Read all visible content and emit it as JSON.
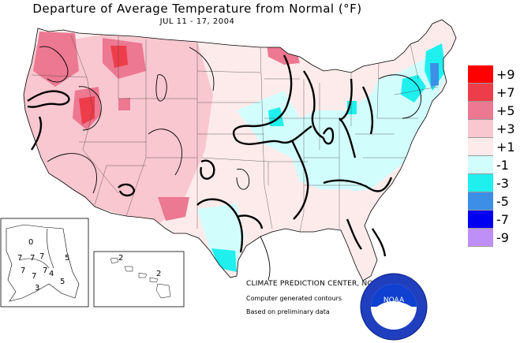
{
  "title": "Departure of Average Temperature from Normal (°F)",
  "subtitle": "JUL 11 - 17, 2004",
  "legend": [
    {
      "label": "+9",
      "color": "#ff0000"
    },
    {
      "label": "+7",
      "color": "#ee3d4a"
    },
    {
      "label": "+5",
      "color": "#ec7891"
    },
    {
      "label": "+3",
      "color": "#f9c7cf"
    },
    {
      "label": "+1",
      "color": "#fdebeb"
    },
    {
      "label": "-1",
      "color": "#d2fdfd"
    },
    {
      "label": "-3",
      "color": "#1ff0ee"
    },
    {
      "label": "-5",
      "color": "#3d8ee6"
    },
    {
      "label": "-7",
      "color": "#0000f0"
    },
    {
      "label": "-9",
      "color": "#bd8ff7"
    }
  ],
  "credit": {
    "main": "CLIMATE PREDICTION CENTER, NOAA",
    "line1": "Computer generated contours",
    "line2": "Based on preliminary data"
  },
  "logo_text": "NOAA",
  "alaska_labels": [
    "0",
    "7",
    "7",
    "7",
    "7",
    "7",
    "7",
    "4",
    "5",
    "3",
    "5"
  ],
  "hawaii_labels": [
    "2",
    "2"
  ]
}
